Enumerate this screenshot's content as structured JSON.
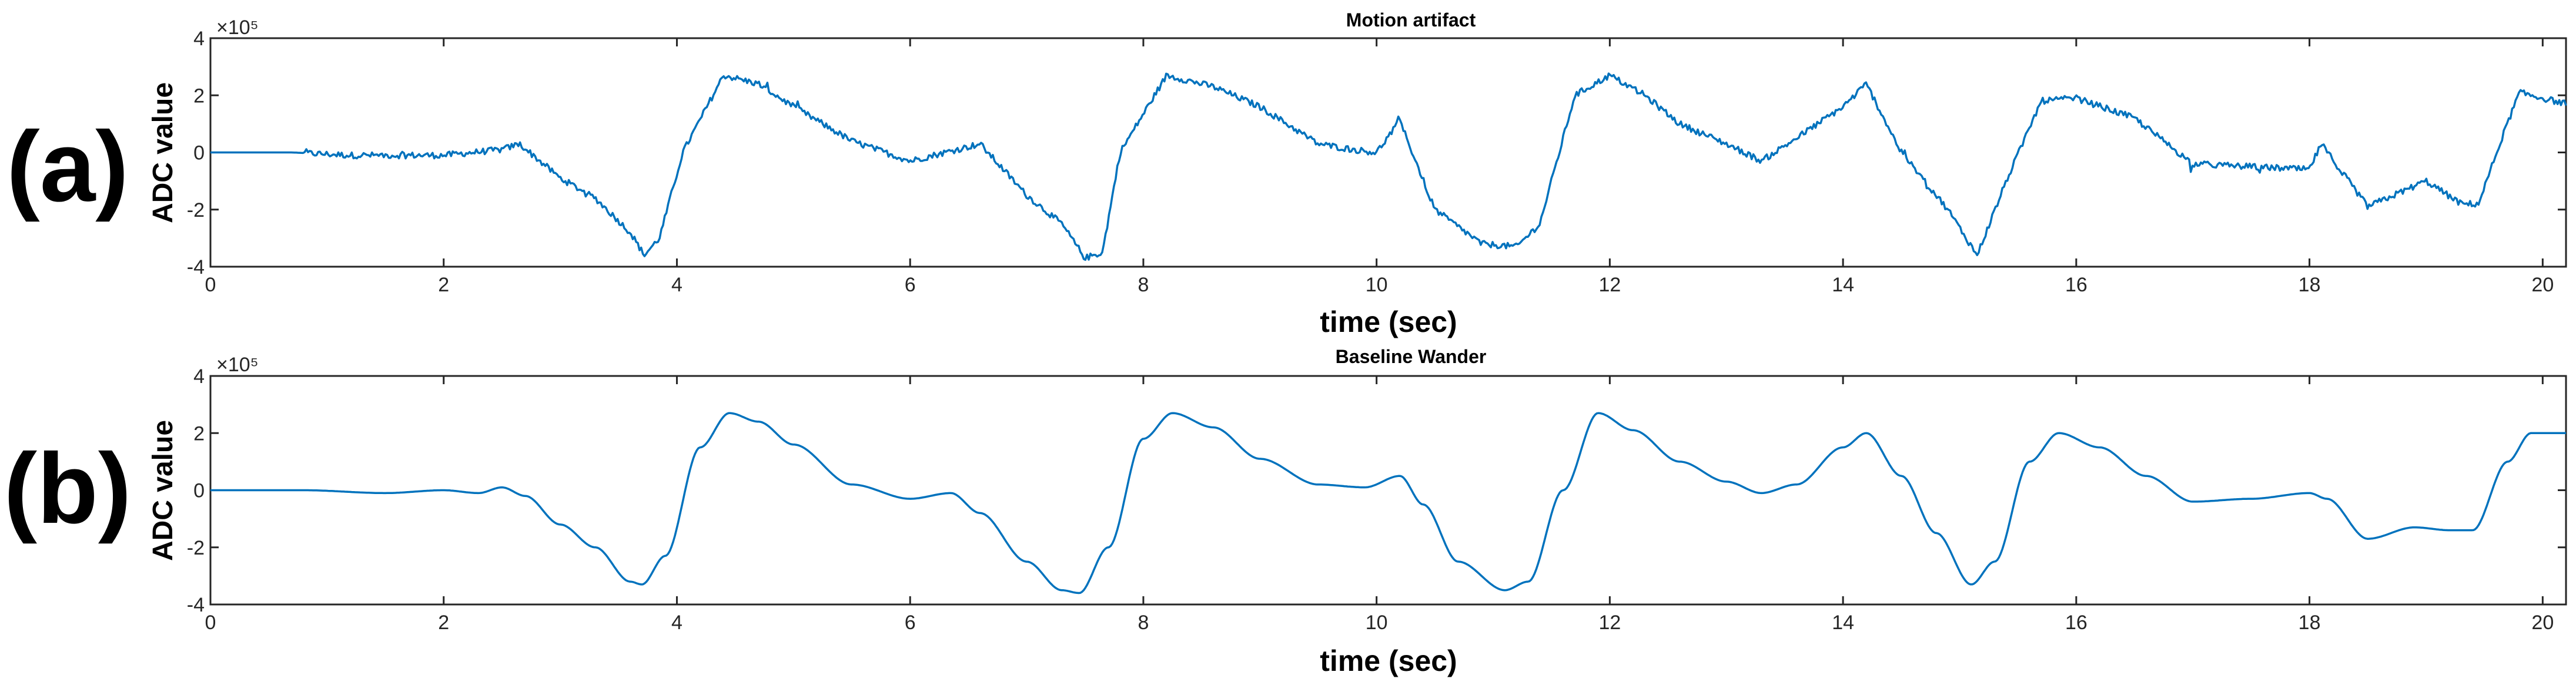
{
  "figure": {
    "panels": [
      {
        "panel_label": "(a)",
        "title": "Motion artifact",
        "xlabel": "time (sec)",
        "ylabel": "ADC value",
        "y_exponent": "×10⁵"
      },
      {
        "panel_label": "(b)",
        "title": "Baseline Wander",
        "xlabel": "time (sec)",
        "ylabel": "ADC value",
        "y_exponent": "×10⁵"
      }
    ]
  },
  "colors": {
    "series": "#0072BD",
    "axes": "#262626"
  },
  "chart_data": [
    {
      "type": "line",
      "title": "Motion artifact",
      "xlabel": "time (sec)",
      "ylabel": "ADC value",
      "y_unit_multiplier": "x10^5",
      "xlim": [
        0,
        20.2
      ],
      "ylim": [
        -4,
        4
      ],
      "xticks": [
        0,
        2,
        4,
        6,
        8,
        10,
        12,
        14,
        16,
        18,
        20
      ],
      "yticks": [
        -4,
        -2,
        0,
        2,
        4
      ],
      "grid": false,
      "noisy": true,
      "x": [
        0,
        0.7,
        1.2,
        2.0,
        2.5,
        2.65,
        3.0,
        3.3,
        3.6,
        3.72,
        3.85,
        4.05,
        4.4,
        4.7,
        5.0,
        5.5,
        6.0,
        6.3,
        6.6,
        7.0,
        7.3,
        7.5,
        7.65,
        7.8,
        8.2,
        8.6,
        9.0,
        9.5,
        9.8,
        10.0,
        10.2,
        10.5,
        10.9,
        11.2,
        11.4,
        11.5,
        11.7,
        12.0,
        12.3,
        12.6,
        13.0,
        13.3,
        13.6,
        14.0,
        14.2,
        14.5,
        14.9,
        15.15,
        15.4,
        15.7,
        16.0,
        16.5,
        17.0,
        17.5,
        18.0,
        18.1,
        18.5,
        19.0,
        19.3,
        19.45,
        19.65,
        19.8,
        20.2
      ],
      "y": [
        0,
        0,
        -0.1,
        -0.1,
        0.1,
        0.3,
        -0.9,
        -1.6,
        -2.8,
        -3.6,
        -3.0,
        0.0,
        2.7,
        2.4,
        1.6,
        0.4,
        -0.3,
        0.0,
        0.3,
        -1.5,
        -2.5,
        -3.7,
        -3.5,
        0.0,
        2.7,
        2.3,
        1.6,
        0.3,
        0.1,
        0.0,
        1.1,
        -2.0,
        -3.2,
        -3.3,
        -2.5,
        -1.0,
        2.0,
        2.7,
        2.0,
        1.0,
        0.3,
        -0.3,
        0.5,
        1.6,
        2.4,
        0.0,
        -2.0,
        -3.6,
        -1.0,
        1.8,
        1.9,
        1.2,
        -0.4,
        -0.5,
        -0.6,
        0.3,
        -1.9,
        -1.0,
        -1.8,
        -1.8,
        0.5,
        2.1,
        1.7
      ]
    },
    {
      "type": "line",
      "title": "Baseline Wander",
      "xlabel": "time (sec)",
      "ylabel": "ADC value",
      "y_unit_multiplier": "x10^5",
      "xlim": [
        0,
        20.2
      ],
      "ylim": [
        -4,
        4
      ],
      "xticks": [
        0,
        2,
        4,
        6,
        8,
        10,
        12,
        14,
        16,
        18,
        20
      ],
      "yticks": [
        -4,
        -2,
        0,
        2,
        4
      ],
      "grid": false,
      "noisy": false,
      "x": [
        0,
        0.8,
        1.5,
        2.0,
        2.3,
        2.5,
        2.7,
        3.0,
        3.3,
        3.6,
        3.7,
        3.9,
        4.2,
        4.45,
        4.7,
        5.0,
        5.5,
        6.0,
        6.35,
        6.6,
        7.0,
        7.3,
        7.45,
        7.7,
        8.0,
        8.25,
        8.6,
        9.0,
        9.5,
        9.9,
        10.2,
        10.4,
        10.7,
        11.1,
        11.3,
        11.6,
        11.9,
        12.2,
        12.6,
        13.0,
        13.3,
        13.6,
        14.0,
        14.2,
        14.5,
        14.8,
        15.1,
        15.3,
        15.6,
        15.85,
        16.2,
        16.6,
        17.0,
        17.5,
        18.0,
        18.15,
        18.5,
        18.9,
        19.2,
        19.4,
        19.7,
        19.9,
        20.2
      ],
      "y": [
        0,
        0,
        -0.1,
        0.0,
        -0.1,
        0.1,
        -0.2,
        -1.2,
        -2.0,
        -3.2,
        -3.3,
        -2.3,
        1.5,
        2.7,
        2.4,
        1.6,
        0.2,
        -0.3,
        -0.1,
        -0.8,
        -2.5,
        -3.5,
        -3.6,
        -2.0,
        1.8,
        2.7,
        2.2,
        1.1,
        0.2,
        0.1,
        0.5,
        -0.5,
        -2.5,
        -3.5,
        -3.2,
        0.0,
        2.7,
        2.1,
        1.0,
        0.3,
        -0.1,
        0.2,
        1.5,
        2.0,
        0.5,
        -1.5,
        -3.3,
        -2.5,
        1.0,
        2.0,
        1.5,
        0.5,
        -0.4,
        -0.3,
        -0.1,
        -0.3,
        -1.7,
        -1.3,
        -1.4,
        -1.4,
        1.0,
        2.0,
        2.0
      ]
    }
  ]
}
